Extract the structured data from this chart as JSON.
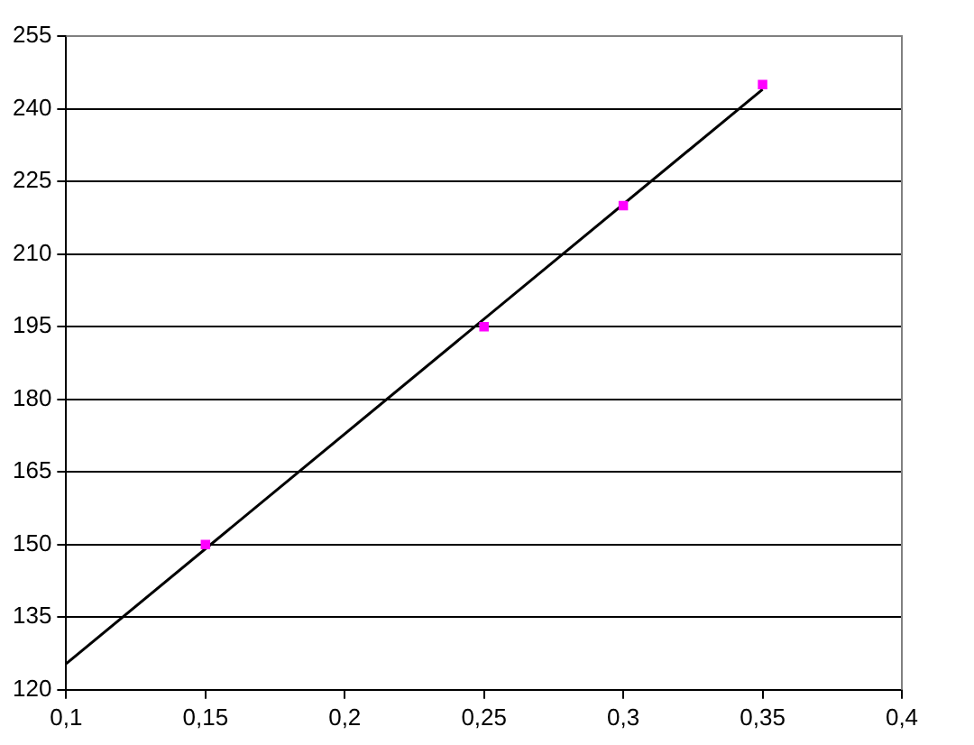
{
  "chart_data": {
    "type": "scatter",
    "xlim": [
      0.1,
      0.4
    ],
    "ylim": [
      120,
      255
    ],
    "xticks": [
      {
        "value": 0.1,
        "label": "0,1"
      },
      {
        "value": 0.15,
        "label": "0,15"
      },
      {
        "value": 0.2,
        "label": "0,2"
      },
      {
        "value": 0.25,
        "label": "0,25"
      },
      {
        "value": 0.3,
        "label": "0,3"
      },
      {
        "value": 0.35,
        "label": "0,35"
      },
      {
        "value": 0.4,
        "label": "0,4"
      }
    ],
    "yticks": [
      120,
      135,
      150,
      165,
      180,
      195,
      210,
      225,
      240,
      255
    ],
    "grid": "y",
    "legend": false,
    "series": [
      {
        "type": "scatter",
        "color": "#ff00ff",
        "marker": "square",
        "x": [
          0.15,
          0.25,
          0.3,
          0.35
        ],
        "values": [
          150,
          195,
          220,
          245
        ]
      },
      {
        "type": "line",
        "color": "#000000",
        "marker": "none",
        "line_style": "solid",
        "x": [
          0.1,
          0.35
        ],
        "values": [
          125.4,
          244
        ]
      }
    ]
  }
}
